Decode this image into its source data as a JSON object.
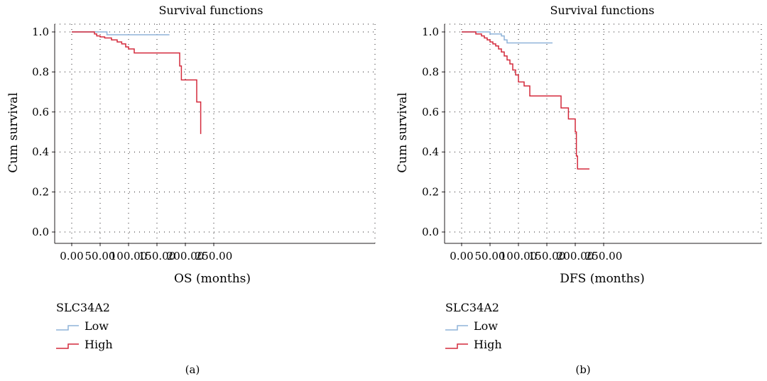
{
  "colors": {
    "low": "#8fb3d9",
    "high": "#d42a3c",
    "axis": "#231f20",
    "grid": "#231f20"
  },
  "chart_data": [
    {
      "type": "line",
      "step": true,
      "title": "Survival functions",
      "xlabel": "OS (months)",
      "ylabel": "Cum survival",
      "caption": "(a)",
      "xlim": [
        0,
        250
      ],
      "ylim": [
        0,
        1
      ],
      "xticks": [
        "0.00",
        "50.00",
        "100.00",
        "150.00",
        "200.00",
        "250.00"
      ],
      "yticks": [
        "0.0",
        "0.2",
        "0.4",
        "0.6",
        "0.8",
        "1.0"
      ],
      "grid": true,
      "legend": {
        "title": "SLC34A2",
        "position": "bottom-left"
      },
      "series": [
        {
          "name": "Low",
          "color_key": "low",
          "x": [
            0,
            35,
            62,
            62,
            172
          ],
          "y": [
            1.0,
            1.0,
            1.0,
            0.986,
            0.986
          ]
        },
        {
          "name": "High",
          "color_key": "high",
          "x": [
            0,
            38,
            40,
            44,
            50,
            58,
            70,
            80,
            88,
            95,
            100,
            110,
            120,
            150,
            190,
            190,
            193,
            193,
            220,
            220,
            227,
            227
          ],
          "y": [
            1.0,
            1.0,
            0.99,
            0.98,
            0.975,
            0.97,
            0.96,
            0.95,
            0.94,
            0.925,
            0.915,
            0.895,
            0.895,
            0.895,
            0.895,
            0.83,
            0.83,
            0.76,
            0.76,
            0.65,
            0.65,
            0.49
          ]
        }
      ]
    },
    {
      "type": "line",
      "step": true,
      "title": "Survival functions",
      "xlabel": "DFS (months)",
      "ylabel": "Cum survival",
      "caption": "(b)",
      "xlim": [
        0,
        250
      ],
      "ylim": [
        0,
        1
      ],
      "xticks": [
        "0.00",
        "50.00",
        "100.00",
        "150.00",
        "200.00",
        "250.00"
      ],
      "yticks": [
        "0.0",
        "0.2",
        "0.4",
        "0.6",
        "0.8",
        "1.0"
      ],
      "grid": true,
      "legend": {
        "title": "SLC34A2",
        "position": "bottom-left"
      },
      "series": [
        {
          "name": "Low",
          "color_key": "low",
          "x": [
            0,
            40,
            50,
            70,
            75,
            80,
            160
          ],
          "y": [
            1.0,
            1.0,
            0.99,
            0.98,
            0.96,
            0.945,
            0.945
          ]
        },
        {
          "name": "High",
          "color_key": "high",
          "x": [
            0,
            25,
            35,
            40,
            45,
            50,
            55,
            60,
            65,
            70,
            75,
            80,
            85,
            90,
            95,
            100,
            110,
            120,
            150,
            175,
            188,
            198,
            200,
            202,
            204,
            225
          ],
          "y": [
            1.0,
            0.99,
            0.98,
            0.97,
            0.96,
            0.95,
            0.94,
            0.93,
            0.915,
            0.9,
            0.88,
            0.86,
            0.84,
            0.81,
            0.785,
            0.75,
            0.73,
            0.68,
            0.68,
            0.62,
            0.565,
            0.565,
            0.5,
            0.38,
            0.315,
            0.315
          ]
        }
      ]
    }
  ]
}
